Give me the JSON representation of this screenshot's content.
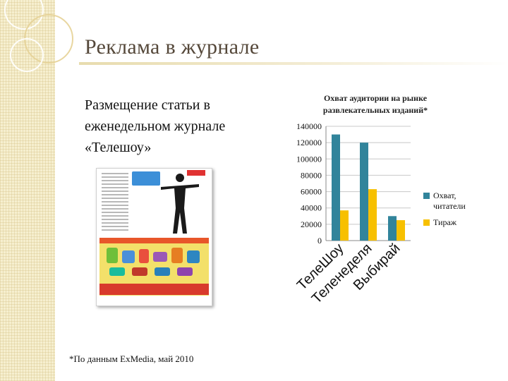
{
  "slide": {
    "title": "Реклама в журнале",
    "body_lines": [
      "Размещение статьи в",
      "еженедельном журнале",
      "«Телешоу»"
    ],
    "footnote": "*По данным ExMedia, май 2010"
  },
  "colors": {
    "series_reach": "#31849b",
    "series_circulation": "#f7c000",
    "title_text": "#55483a"
  },
  "chart_data": {
    "type": "bar",
    "title": "Охват аудитории на рынке развлекательных изданий*",
    "title_lines": [
      "Охват аудитории на рынке",
      "развлекательных изданий*"
    ],
    "categories": [
      "ТелеШоу",
      "Теленеделя",
      "Выбирай"
    ],
    "series": [
      {
        "name": "Охват, читатели",
        "values": [
          130000,
          120000,
          30000
        ]
      },
      {
        "name": "Тираж",
        "values": [
          37000,
          63000,
          25000
        ]
      }
    ],
    "yticks": [
      "140000",
      "120000",
      "100000",
      "80000",
      "60000",
      "40000",
      "20000",
      "0"
    ],
    "ylim": [
      0,
      140000
    ],
    "grid": true,
    "legend": "right"
  }
}
